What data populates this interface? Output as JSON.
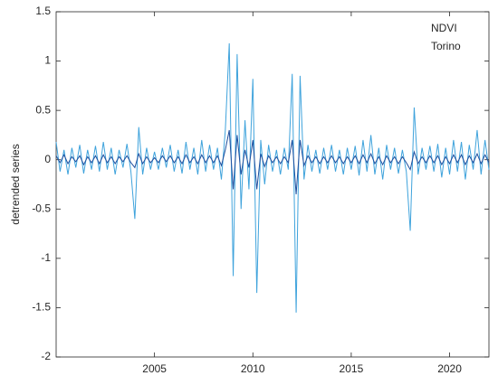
{
  "chart_data": {
    "type": "line",
    "y_label": "detrended series",
    "annotations": [
      "NDVI",
      "Torino"
    ],
    "x": [
      2000,
      2000.2,
      2000.4,
      2000.6,
      2000.8,
      2001,
      2001.2,
      2001.4,
      2001.6,
      2001.8,
      2002,
      2002.2,
      2002.4,
      2002.6,
      2002.8,
      2003,
      2003.2,
      2003.4,
      2003.6,
      2003.8,
      2004,
      2004.2,
      2004.4,
      2004.6,
      2004.8,
      2005,
      2005.2,
      2005.4,
      2005.6,
      2005.8,
      2006,
      2006.2,
      2006.4,
      2006.6,
      2006.8,
      2007,
      2007.2,
      2007.4,
      2007.6,
      2007.8,
      2008,
      2008.2,
      2008.4,
      2008.6,
      2008.8,
      2009,
      2009.2,
      2009.4,
      2009.6,
      2009.8,
      2010,
      2010.2,
      2010.4,
      2010.6,
      2010.8,
      2011,
      2011.2,
      2011.4,
      2011.6,
      2011.8,
      2012,
      2012.2,
      2012.4,
      2012.6,
      2012.8,
      2013,
      2013.2,
      2013.4,
      2013.6,
      2013.8,
      2014,
      2014.2,
      2014.4,
      2014.6,
      2014.8,
      2015,
      2015.2,
      2015.4,
      2015.6,
      2015.8,
      2016,
      2016.2,
      2016.4,
      2016.6,
      2016.8,
      2017,
      2017.2,
      2017.4,
      2017.6,
      2017.8,
      2018,
      2018.2,
      2018.4,
      2018.6,
      2018.8,
      2019,
      2019.2,
      2019.4,
      2019.6,
      2019.8,
      2020,
      2020.2,
      2020.4,
      2020.6,
      2020.8,
      2021,
      2021.2,
      2021.4,
      2021.6,
      2021.8,
      2022
    ],
    "series": [
      {
        "color": "#3fa3dc",
        "values": [
          0.18,
          -0.12,
          0.1,
          -0.15,
          0.12,
          -0.08,
          0.15,
          -0.14,
          0.1,
          -0.1,
          0.14,
          -0.12,
          0.18,
          -0.1,
          0.12,
          -0.15,
          0.1,
          -0.08,
          0.16,
          -0.12,
          -0.6,
          0.33,
          -0.15,
          0.12,
          -0.1,
          0.08,
          -0.1,
          0.12,
          -0.08,
          0.15,
          -0.12,
          0.1,
          -0.14,
          0.18,
          -0.1,
          0.12,
          -0.15,
          0.2,
          -0.12,
          0.15,
          -0.1,
          0.12,
          -0.2,
          0.3,
          1.18,
          -1.18,
          1.07,
          -0.5,
          0.4,
          -0.3,
          0.82,
          -1.35,
          0.2,
          -0.25,
          0.15,
          -0.12,
          0.1,
          -0.15,
          0.12,
          -0.1,
          0.87,
          -1.55,
          0.85,
          -0.2,
          0.15,
          -0.12,
          0.1,
          -0.14,
          0.12,
          -0.1,
          0.15,
          -0.12,
          0.1,
          -0.15,
          0.12,
          -0.1,
          0.14,
          -0.16,
          0.2,
          -0.12,
          0.25,
          -0.15,
          0.12,
          -0.2,
          0.15,
          -0.1,
          0.12,
          -0.14,
          0.1,
          -0.12,
          -0.72,
          0.53,
          -0.15,
          0.12,
          -0.1,
          0.14,
          -0.12,
          0.16,
          -0.18,
          0.12,
          -0.15,
          0.2,
          -0.12,
          0.18,
          -0.2,
          0.15,
          -0.1,
          0.3,
          -0.15,
          0.2,
          -0.1
        ]
      },
      {
        "color": "#1f4f9e",
        "values": [
          0.04,
          -0.03,
          0.05,
          -0.04,
          0.03,
          -0.02,
          0.04,
          -0.05,
          0.03,
          -0.03,
          0.04,
          -0.04,
          0.05,
          -0.03,
          0.03,
          -0.04,
          0.03,
          -0.02,
          0.04,
          -0.03,
          -0.08,
          0.06,
          -0.04,
          0.03,
          -0.03,
          0.02,
          -0.03,
          0.04,
          -0.02,
          0.04,
          -0.03,
          0.03,
          -0.04,
          0.05,
          -0.03,
          0.03,
          -0.04,
          0.05,
          -0.03,
          0.04,
          -0.03,
          0.04,
          -0.06,
          0.1,
          0.3,
          -0.3,
          0.25,
          -0.15,
          0.1,
          -0.08,
          0.2,
          -0.3,
          0.06,
          -0.07,
          0.04,
          -0.03,
          0.03,
          -0.04,
          0.03,
          -0.03,
          0.2,
          -0.35,
          0.2,
          -0.06,
          0.04,
          -0.03,
          0.03,
          -0.04,
          0.03,
          -0.03,
          0.04,
          -0.03,
          0.03,
          -0.04,
          0.03,
          -0.03,
          0.04,
          -0.04,
          0.05,
          -0.03,
          0.06,
          -0.04,
          0.03,
          -0.05,
          0.04,
          -0.03,
          0.03,
          -0.04,
          0.03,
          -0.03,
          -0.1,
          0.08,
          -0.04,
          0.03,
          -0.03,
          0.04,
          -0.03,
          0.04,
          -0.05,
          0.03,
          -0.04,
          0.05,
          -0.03,
          0.05,
          -0.05,
          0.04,
          -0.03,
          0.06,
          -0.04,
          0.05,
          -0.03
        ]
      }
    ],
    "xlim": [
      2000,
      2022
    ],
    "xticks": [
      2005,
      2010,
      2015,
      2020
    ],
    "ylim": [
      -2,
      1.5
    ],
    "yticks": [
      -2,
      -1.5,
      -1,
      -0.5,
      0,
      0.5,
      1,
      1.5
    ],
    "grid": false
  }
}
